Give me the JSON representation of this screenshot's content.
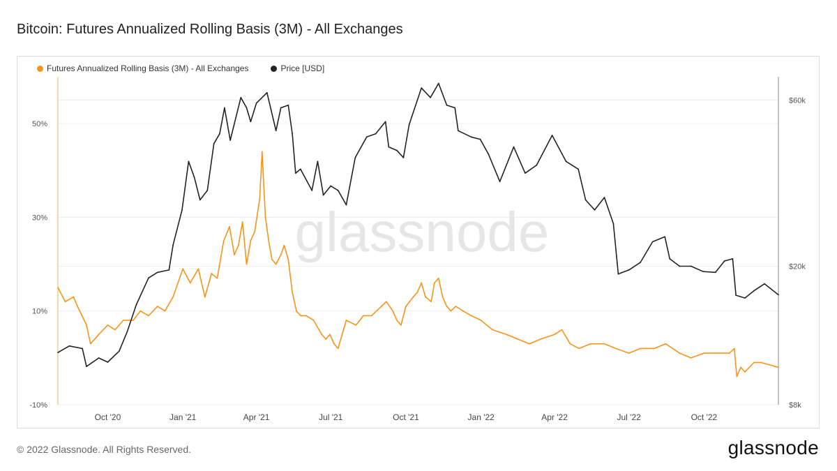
{
  "title": "Bitcoin: Futures Annualized Rolling Basis (3M) - All Exchanges",
  "footer": "© 2022 Glassnode. All Rights Reserved.",
  "logo": "glassnode",
  "watermark": "glassnode",
  "colors": {
    "basis": "#f7931a",
    "price": "#222222",
    "grid": "#ececec"
  },
  "chart_data": {
    "type": "line",
    "title": "Bitcoin: Futures Annualized Rolling Basis (3M) - All Exchanges",
    "x_range": [
      "2020-08-01",
      "2022-12-31"
    ],
    "x_ticks": [
      {
        "date": "2020-10-01",
        "label": "Oct '20"
      },
      {
        "date": "2021-01-01",
        "label": "Jan '21"
      },
      {
        "date": "2021-04-01",
        "label": "Apr '21"
      },
      {
        "date": "2021-07-01",
        "label": "Jul '21"
      },
      {
        "date": "2021-10-01",
        "label": "Oct '21"
      },
      {
        "date": "2022-01-01",
        "label": "Jan '22"
      },
      {
        "date": "2022-04-01",
        "label": "Apr '22"
      },
      {
        "date": "2022-07-01",
        "label": "Jul '22"
      },
      {
        "date": "2022-10-01",
        "label": "Oct '22"
      }
    ],
    "y_left": {
      "label": "Futures Annualized Rolling Basis (3M)",
      "range": [
        -10,
        60
      ],
      "ticks": [
        {
          "value": -10,
          "label": "-10%"
        },
        {
          "value": 10,
          "label": "10%"
        },
        {
          "value": 30,
          "label": "30%"
        },
        {
          "value": 50,
          "label": "50%"
        }
      ]
    },
    "y_right": {
      "label": "Price [USD]",
      "scale": "log",
      "range": [
        8000,
        70000
      ],
      "ticks": [
        {
          "value": 8000,
          "label": "$8k"
        },
        {
          "value": 20000,
          "label": "$20k"
        },
        {
          "value": 60000,
          "label": "$60k"
        }
      ]
    },
    "series": [
      {
        "name": "Futures Annualized Rolling Basis (3M) - All Exchanges",
        "axis": "left",
        "points": [
          [
            "2020-08-01",
            15
          ],
          [
            "2020-08-10",
            12
          ],
          [
            "2020-08-20",
            13
          ],
          [
            "2020-08-25",
            11
          ],
          [
            "2020-09-05",
            7
          ],
          [
            "2020-09-10",
            3
          ],
          [
            "2020-09-20",
            5
          ],
          [
            "2020-10-01",
            7
          ],
          [
            "2020-10-10",
            6
          ],
          [
            "2020-10-20",
            8
          ],
          [
            "2020-11-01",
            8
          ],
          [
            "2020-11-10",
            10
          ],
          [
            "2020-11-20",
            9
          ],
          [
            "2020-12-01",
            11
          ],
          [
            "2020-12-10",
            10
          ],
          [
            "2020-12-20",
            13
          ],
          [
            "2021-01-01",
            19
          ],
          [
            "2021-01-10",
            16
          ],
          [
            "2021-01-20",
            19
          ],
          [
            "2021-01-28",
            13
          ],
          [
            "2021-02-05",
            18
          ],
          [
            "2021-02-12",
            17
          ],
          [
            "2021-02-20",
            25
          ],
          [
            "2021-02-27",
            28
          ],
          [
            "2021-03-05",
            22
          ],
          [
            "2021-03-10",
            24
          ],
          [
            "2021-03-15",
            29
          ],
          [
            "2021-03-20",
            20
          ],
          [
            "2021-03-25",
            25
          ],
          [
            "2021-03-30",
            27
          ],
          [
            "2021-04-05",
            34
          ],
          [
            "2021-04-08",
            44
          ],
          [
            "2021-04-12",
            30
          ],
          [
            "2021-04-16",
            25
          ],
          [
            "2021-04-20",
            21
          ],
          [
            "2021-04-25",
            20
          ],
          [
            "2021-05-01",
            22
          ],
          [
            "2021-05-05",
            24
          ],
          [
            "2021-05-10",
            21
          ],
          [
            "2021-05-15",
            14
          ],
          [
            "2021-05-20",
            10
          ],
          [
            "2021-05-25",
            9
          ],
          [
            "2021-06-01",
            9
          ],
          [
            "2021-06-10",
            8
          ],
          [
            "2021-06-20",
            5
          ],
          [
            "2021-06-25",
            4
          ],
          [
            "2021-06-30",
            5
          ],
          [
            "2021-07-05",
            3
          ],
          [
            "2021-07-10",
            2
          ],
          [
            "2021-07-20",
            8
          ],
          [
            "2021-08-01",
            7
          ],
          [
            "2021-08-10",
            9
          ],
          [
            "2021-08-20",
            9
          ],
          [
            "2021-09-01",
            11
          ],
          [
            "2021-09-07",
            12
          ],
          [
            "2021-09-15",
            10
          ],
          [
            "2021-09-20",
            8
          ],
          [
            "2021-09-25",
            7
          ],
          [
            "2021-10-01",
            11
          ],
          [
            "2021-10-10",
            13
          ],
          [
            "2021-10-15",
            14
          ],
          [
            "2021-10-20",
            16
          ],
          [
            "2021-10-25",
            13
          ],
          [
            "2021-11-01",
            12
          ],
          [
            "2021-11-05",
            16
          ],
          [
            "2021-11-10",
            17
          ],
          [
            "2021-11-15",
            13
          ],
          [
            "2021-11-20",
            11
          ],
          [
            "2021-11-25",
            10
          ],
          [
            "2021-12-01",
            11
          ],
          [
            "2021-12-10",
            10
          ],
          [
            "2021-12-20",
            9
          ],
          [
            "2022-01-01",
            8
          ],
          [
            "2022-01-15",
            6
          ],
          [
            "2022-02-01",
            5
          ],
          [
            "2022-02-15",
            4
          ],
          [
            "2022-03-01",
            3
          ],
          [
            "2022-03-15",
            4
          ],
          [
            "2022-04-01",
            5
          ],
          [
            "2022-04-10",
            6
          ],
          [
            "2022-04-20",
            3
          ],
          [
            "2022-05-01",
            2
          ],
          [
            "2022-05-15",
            3
          ],
          [
            "2022-06-01",
            3
          ],
          [
            "2022-06-15",
            2
          ],
          [
            "2022-07-01",
            1
          ],
          [
            "2022-07-15",
            2
          ],
          [
            "2022-08-01",
            2
          ],
          [
            "2022-08-15",
            3
          ],
          [
            "2022-09-01",
            1
          ],
          [
            "2022-09-15",
            0
          ],
          [
            "2022-10-01",
            1
          ],
          [
            "2022-10-15",
            1
          ],
          [
            "2022-11-01",
            1
          ],
          [
            "2022-11-07",
            2
          ],
          [
            "2022-11-10",
            -4
          ],
          [
            "2022-11-15",
            -2
          ],
          [
            "2022-11-20",
            -3
          ],
          [
            "2022-12-01",
            -1
          ],
          [
            "2022-12-10",
            -1
          ],
          [
            "2022-12-20",
            -1.5
          ],
          [
            "2022-12-31",
            -2
          ]
        ]
      },
      {
        "name": "Price [USD]",
        "axis": "right",
        "points": [
          [
            "2020-08-01",
            11300
          ],
          [
            "2020-08-15",
            11800
          ],
          [
            "2020-08-31",
            11600
          ],
          [
            "2020-09-05",
            10300
          ],
          [
            "2020-09-20",
            10900
          ],
          [
            "2020-10-01",
            10600
          ],
          [
            "2020-10-15",
            11400
          ],
          [
            "2020-10-25",
            13000
          ],
          [
            "2020-11-05",
            15500
          ],
          [
            "2020-11-20",
            18500
          ],
          [
            "2020-12-01",
            19200
          ],
          [
            "2020-12-15",
            19500
          ],
          [
            "2020-12-20",
            23000
          ],
          [
            "2020-12-31",
            29000
          ],
          [
            "2021-01-08",
            40000
          ],
          [
            "2021-01-15",
            36000
          ],
          [
            "2021-01-22",
            31000
          ],
          [
            "2021-01-31",
            33000
          ],
          [
            "2021-02-08",
            45000
          ],
          [
            "2021-02-15",
            48000
          ],
          [
            "2021-02-21",
            57000
          ],
          [
            "2021-02-28",
            46000
          ],
          [
            "2021-03-13",
            61000
          ],
          [
            "2021-03-20",
            57000
          ],
          [
            "2021-03-25",
            52000
          ],
          [
            "2021-04-01",
            58800
          ],
          [
            "2021-04-14",
            63000
          ],
          [
            "2021-04-25",
            49000
          ],
          [
            "2021-05-01",
            57000
          ],
          [
            "2021-05-10",
            58000
          ],
          [
            "2021-05-15",
            48000
          ],
          [
            "2021-05-19",
            37000
          ],
          [
            "2021-05-25",
            38000
          ],
          [
            "2021-06-08",
            33000
          ],
          [
            "2021-06-15",
            40000
          ],
          [
            "2021-06-22",
            32000
          ],
          [
            "2021-07-01",
            34000
          ],
          [
            "2021-07-10",
            33000
          ],
          [
            "2021-07-20",
            30000
          ],
          [
            "2021-07-31",
            41000
          ],
          [
            "2021-08-14",
            47000
          ],
          [
            "2021-08-25",
            48000
          ],
          [
            "2021-09-06",
            52000
          ],
          [
            "2021-09-10",
            44000
          ],
          [
            "2021-09-20",
            43000
          ],
          [
            "2021-09-28",
            41000
          ],
          [
            "2021-10-05",
            51000
          ],
          [
            "2021-10-20",
            65000
          ],
          [
            "2021-10-31",
            61000
          ],
          [
            "2021-11-10",
            67000
          ],
          [
            "2021-11-20",
            58000
          ],
          [
            "2021-11-30",
            57000
          ],
          [
            "2021-12-04",
            49000
          ],
          [
            "2021-12-20",
            47000
          ],
          [
            "2021-12-31",
            46300
          ],
          [
            "2022-01-10",
            42000
          ],
          [
            "2022-01-24",
            35000
          ],
          [
            "2022-02-10",
            44000
          ],
          [
            "2022-02-24",
            37000
          ],
          [
            "2022-03-10",
            39000
          ],
          [
            "2022-03-29",
            47500
          ],
          [
            "2022-04-15",
            40000
          ],
          [
            "2022-04-30",
            38000
          ],
          [
            "2022-05-09",
            31000
          ],
          [
            "2022-05-20",
            29000
          ],
          [
            "2022-06-01",
            31500
          ],
          [
            "2022-06-12",
            26500
          ],
          [
            "2022-06-18",
            19000
          ],
          [
            "2022-07-01",
            19500
          ],
          [
            "2022-07-15",
            20500
          ],
          [
            "2022-07-30",
            23500
          ],
          [
            "2022-08-14",
            24300
          ],
          [
            "2022-08-20",
            21000
          ],
          [
            "2022-09-01",
            20000
          ],
          [
            "2022-09-15",
            20000
          ],
          [
            "2022-09-30",
            19300
          ],
          [
            "2022-10-15",
            19200
          ],
          [
            "2022-10-26",
            20700
          ],
          [
            "2022-11-05",
            21000
          ],
          [
            "2022-11-09",
            16500
          ],
          [
            "2022-11-20",
            16200
          ],
          [
            "2022-12-01",
            17000
          ],
          [
            "2022-12-14",
            17800
          ],
          [
            "2022-12-31",
            16550
          ]
        ]
      }
    ]
  }
}
